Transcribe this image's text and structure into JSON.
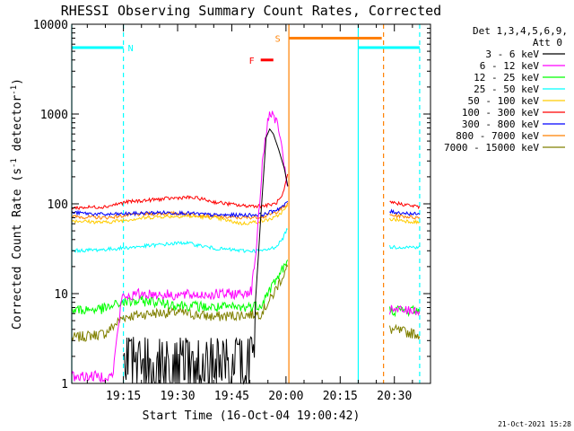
{
  "chart_data": {
    "type": "line",
    "title": "RHESSI Observing Summary Count Rates, Corrected",
    "xlabel": "Start Time (16-Oct-04 19:00:42)",
    "ylabel": "Corrected Count Rate (s",
    "ylabel_sup1": "-1",
    "ylabel_mid": " detector",
    "ylabel_sup2": "-1",
    "ylabel_end": ")",
    "yscale": "log",
    "ylim": [
      1,
      10000
    ],
    "xlim_min": [
      1140.7,
      1240
    ],
    "xticks": [
      {
        "m": 1155,
        "label": "19:15"
      },
      {
        "m": 1170,
        "label": "19:30"
      },
      {
        "m": 1185,
        "label": "19:45"
      },
      {
        "m": 1200,
        "label": "20:00"
      },
      {
        "m": 1215,
        "label": "20:15"
      },
      {
        "m": 1230,
        "label": "20:30"
      }
    ],
    "yticks": [
      {
        "v": 1,
        "label": "1"
      },
      {
        "v": 10,
        "label": "10"
      },
      {
        "v": 100,
        "label": "100"
      },
      {
        "v": 1000,
        "label": "1000"
      },
      {
        "v": 10000,
        "label": "10000"
      }
    ],
    "legend_header": [
      "Det 1,3,4,5,6,9,",
      "Att 0"
    ],
    "legend_position": "top-right",
    "gaps": [
      [
        1200.8,
        1228.5
      ]
    ],
    "series": [
      {
        "name": "3 - 6 keV",
        "color": "#000000",
        "points": [
          [
            1155,
            1.5
          ],
          [
            1158,
            2.5
          ],
          [
            1162,
            3.2
          ],
          [
            1168,
            2.8
          ],
          [
            1175,
            3
          ],
          [
            1182,
            2.2
          ],
          [
            1188,
            3
          ],
          [
            1191,
            3.5
          ],
          [
            1193,
            70
          ],
          [
            1194.5,
            550
          ],
          [
            1195.5,
            680
          ],
          [
            1196.5,
            600
          ],
          [
            1198,
            400
          ],
          [
            1199.5,
            250
          ],
          [
            1200.6,
            150
          ]
        ]
      },
      {
        "name": "6 - 12 keV",
        "color": "#ff00ff",
        "points": [
          [
            1140.7,
            1.2
          ],
          [
            1152,
            1.2
          ],
          [
            1154.5,
            9
          ],
          [
            1160,
            10
          ],
          [
            1170,
            9.6
          ],
          [
            1180,
            9.8
          ],
          [
            1188,
            10
          ],
          [
            1190.5,
            11
          ],
          [
            1192,
            40
          ],
          [
            1193.5,
            300
          ],
          [
            1195,
            900
          ],
          [
            1196.5,
            1000
          ],
          [
            1198,
            700
          ],
          [
            1199.5,
            250
          ],
          [
            1200.6,
            150
          ],
          [
            1228.5,
            6.5
          ],
          [
            1237,
            6.5
          ]
        ]
      },
      {
        "name": "12 - 25 keV",
        "color": "#00ff00",
        "points": [
          [
            1140.7,
            6.5
          ],
          [
            1150,
            6.8
          ],
          [
            1155,
            8
          ],
          [
            1162,
            8.3
          ],
          [
            1170,
            7.5
          ],
          [
            1180,
            7
          ],
          [
            1188,
            7
          ],
          [
            1193,
            7.5
          ],
          [
            1196,
            12
          ],
          [
            1198,
            16
          ],
          [
            1199.5,
            20
          ],
          [
            1200.5,
            22
          ],
          [
            1228.5,
            6.5
          ],
          [
            1237,
            6.5
          ]
        ]
      },
      {
        "name": "25 - 50 keV",
        "color": "#00ffff",
        "points": [
          [
            1140.7,
            30
          ],
          [
            1150,
            31
          ],
          [
            1158,
            33
          ],
          [
            1165,
            35
          ],
          [
            1172,
            37
          ],
          [
            1180,
            32
          ],
          [
            1188,
            30
          ],
          [
            1194,
            30
          ],
          [
            1197,
            33
          ],
          [
            1199,
            40
          ],
          [
            1200.5,
            55
          ],
          [
            1228.5,
            33
          ],
          [
            1237,
            33
          ]
        ]
      },
      {
        "name": "50 - 100 keV",
        "color": "#ffcc00",
        "points": [
          [
            1140.7,
            65
          ],
          [
            1150,
            62
          ],
          [
            1158,
            68
          ],
          [
            1165,
            72
          ],
          [
            1172,
            73
          ],
          [
            1180,
            70
          ],
          [
            1188,
            60
          ],
          [
            1194,
            65
          ],
          [
            1197,
            70
          ],
          [
            1199.5,
            85
          ],
          [
            1200.6,
            95
          ],
          [
            1228.5,
            68
          ],
          [
            1237,
            62
          ]
        ]
      },
      {
        "name": "100 - 300 keV",
        "color": "#ff0000",
        "points": [
          [
            1140.7,
            90
          ],
          [
            1150,
            93
          ],
          [
            1156,
            105
          ],
          [
            1162,
            110
          ],
          [
            1168,
            115
          ],
          [
            1172,
            118
          ],
          [
            1176,
            115
          ],
          [
            1180,
            105
          ],
          [
            1188,
            95
          ],
          [
            1194,
            95
          ],
          [
            1197,
            100
          ],
          [
            1199,
            120
          ],
          [
            1200.5,
            210
          ],
          [
            1228.5,
            105
          ],
          [
            1237,
            92
          ]
        ]
      },
      {
        "name": "300 - 800 keV",
        "color": "#0000ff",
        "points": [
          [
            1140.7,
            80
          ],
          [
            1150,
            76
          ],
          [
            1158,
            78
          ],
          [
            1165,
            80
          ],
          [
            1172,
            79
          ],
          [
            1180,
            75
          ],
          [
            1188,
            75
          ],
          [
            1194,
            76
          ],
          [
            1197,
            85
          ],
          [
            1199.5,
            95
          ],
          [
            1200.6,
            110
          ],
          [
            1228.5,
            82
          ],
          [
            1237,
            76
          ]
        ]
      },
      {
        "name": "800 - 7000 keV",
        "color": "#ff8000",
        "points": [
          [
            1140.7,
            72
          ],
          [
            1150,
            70
          ],
          [
            1158,
            76
          ],
          [
            1165,
            78
          ],
          [
            1172,
            78
          ],
          [
            1180,
            72
          ],
          [
            1188,
            70
          ],
          [
            1194,
            72
          ],
          [
            1197,
            80
          ],
          [
            1199.5,
            92
          ],
          [
            1200.6,
            100
          ],
          [
            1228.5,
            75
          ],
          [
            1237,
            70
          ]
        ]
      },
      {
        "name": "7000 - 15000 keV",
        "color": "#808000",
        "points": [
          [
            1140.7,
            3.2
          ],
          [
            1150,
            3.6
          ],
          [
            1155,
            5.5
          ],
          [
            1162,
            6
          ],
          [
            1170,
            6.2
          ],
          [
            1180,
            5.5
          ],
          [
            1188,
            5.8
          ],
          [
            1193,
            6
          ],
          [
            1196,
            9
          ],
          [
            1198,
            13
          ],
          [
            1200.5,
            20
          ],
          [
            1228.5,
            4
          ],
          [
            1237,
            3.5
          ]
        ]
      }
    ],
    "flags": [
      {
        "label": "N",
        "color": "#00ffff",
        "y": 5500,
        "x0": 1140.7,
        "x1": 1155,
        "label_x": 1157
      },
      {
        "label": "S",
        "color": "#ff8000",
        "y": 7000,
        "x0": 1200.8,
        "x1": 1226.5,
        "label_x": 1197.7
      },
      {
        "label": "F",
        "color": "#ff0000",
        "y": 4000,
        "x0": 1193,
        "x1": 1196.5,
        "label_x": 1190.5
      },
      {
        "label": "",
        "color": "#00ffff",
        "y": 5500,
        "x0": 1220,
        "x1": 1237
      }
    ],
    "vlines": [
      {
        "m": 1155,
        "color": "#00ffff",
        "dashed": true
      },
      {
        "m": 1140.7,
        "color": "#00ffff",
        "dashed": false
      },
      {
        "m": 1200.8,
        "color": "#ff8000",
        "dashed": false
      },
      {
        "m": 1220,
        "color": "#00ffff",
        "dashed": false
      },
      {
        "m": 1227,
        "color": "#ff8000",
        "dashed": true
      },
      {
        "m": 1237,
        "color": "#00ffff",
        "dashed": true
      }
    ],
    "date_stamp": "21-Oct-2021 15:28"
  }
}
